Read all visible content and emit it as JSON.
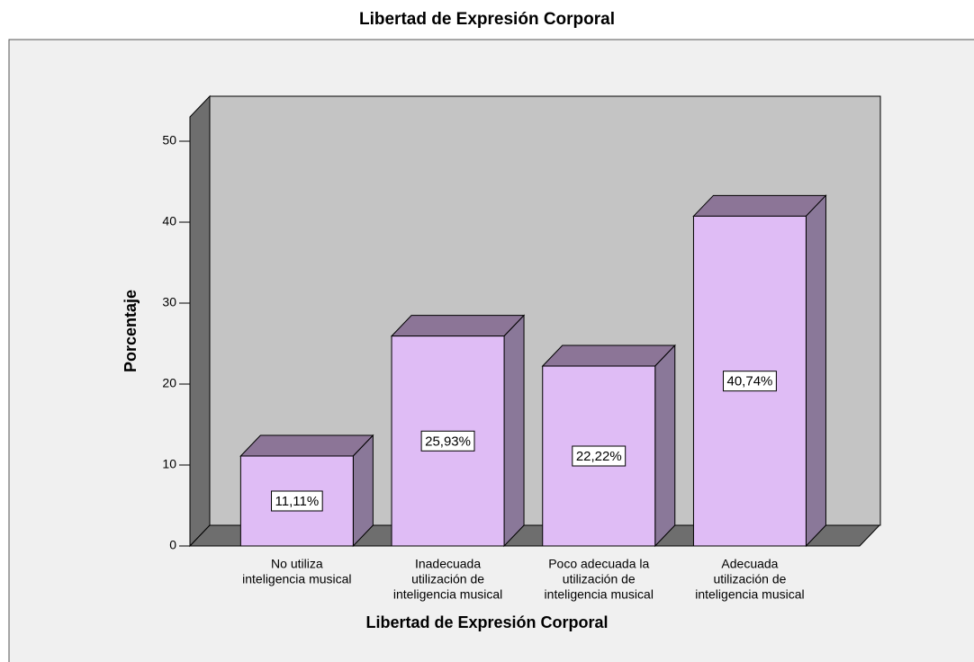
{
  "chart_data": {
    "type": "bar3d",
    "title": "Libertad de Expresión Corporal",
    "x_label": "Libertad de Expresión Corporal",
    "y_label": "Porcentaje",
    "categories": [
      [
        "No utiliza",
        "inteligencia musical"
      ],
      [
        "Inadecuada",
        "utilización de",
        "inteligencia musical"
      ],
      [
        "Poco adecuada la",
        "utilización de",
        "inteligencia musical"
      ],
      [
        "Adecuada",
        "utilización de",
        "inteligencia musical"
      ]
    ],
    "values": [
      11.11,
      25.93,
      22.22,
      40.74
    ],
    "value_labels": [
      "11,11%",
      "25,93%",
      "22,22%",
      "40,74%"
    ],
    "color": "#dfbcf5",
    "ylim": [
      0,
      53
    ],
    "yticks": [
      0,
      10,
      20,
      30,
      40,
      50
    ]
  }
}
